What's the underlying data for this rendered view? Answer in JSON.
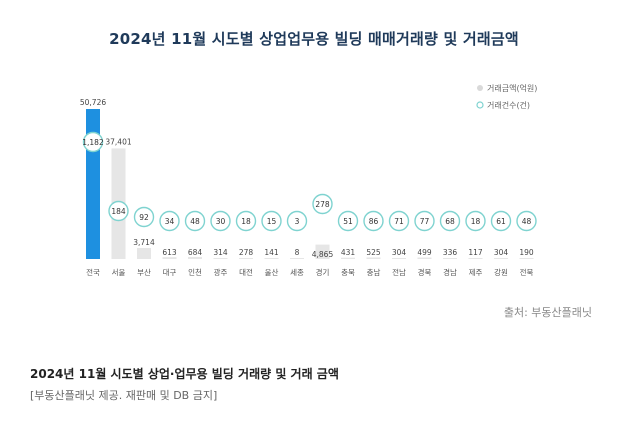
{
  "title": "2024년 11월 시도별 상업업무용 빌딩 매매거래량 및 거래금액",
  "source": "출처: 부동산플래닛",
  "caption": {
    "title": "2024년 11월 시도별 상업·업무용 빌딩 거래량 및 거래 금액",
    "note": "[부동산플래닛 제공. 재판매 및 DB 금지]"
  },
  "colors": {
    "highlight_bar": "#1e90e0",
    "bar": "#e6e6e6",
    "circle_stroke": "#7fd3d0",
    "circle_fill": "#ffffff",
    "title": "#1f3a5a"
  },
  "chart_data": {
    "type": "bar",
    "categories": [
      "전국",
      "서울",
      "부산",
      "대구",
      "인천",
      "광주",
      "대전",
      "울산",
      "세종",
      "경기",
      "충북",
      "충남",
      "전남",
      "경북",
      "경남",
      "제주",
      "강원",
      "전북"
    ],
    "series": [
      {
        "name": "거래금액(억원)",
        "type": "bar",
        "values": [
          50726,
          37401,
          3714,
          613,
          684,
          314,
          278,
          141,
          8,
          4865,
          431,
          525,
          304,
          499,
          336,
          117,
          304,
          190
        ]
      },
      {
        "name": "거래건수(건)",
        "type": "marker",
        "values": [
          1182,
          184,
          92,
          34,
          48,
          30,
          18,
          15,
          3,
          278,
          51,
          86,
          71,
          77,
          68,
          18,
          61,
          48
        ]
      }
    ],
    "highlight_category": "전국",
    "legend_position": "top-right",
    "grid": false
  }
}
